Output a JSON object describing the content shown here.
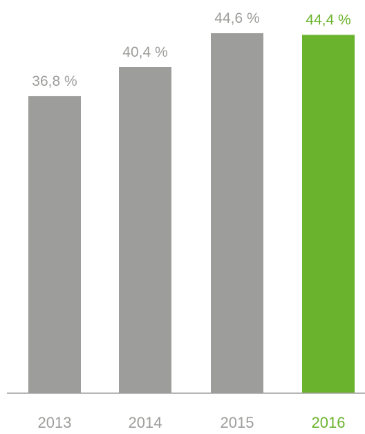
{
  "chart_data": {
    "type": "bar",
    "categories": [
      "2013",
      "2014",
      "2015",
      "2016"
    ],
    "values": [
      36.8,
      40.4,
      44.6,
      44.4
    ],
    "value_labels": [
      "36,8 %",
      "40,4 %",
      "44,6 %",
      "44,4 %"
    ],
    "highlight_index": 3,
    "ylim": [
      0,
      44.6
    ],
    "grid": false,
    "colors": {
      "bar": "#9d9d9b",
      "bar_highlight": "#6ab42d",
      "label": "#9d9d9b",
      "label_highlight": "#6ab42d",
      "axis": "#9d9d9b"
    }
  }
}
